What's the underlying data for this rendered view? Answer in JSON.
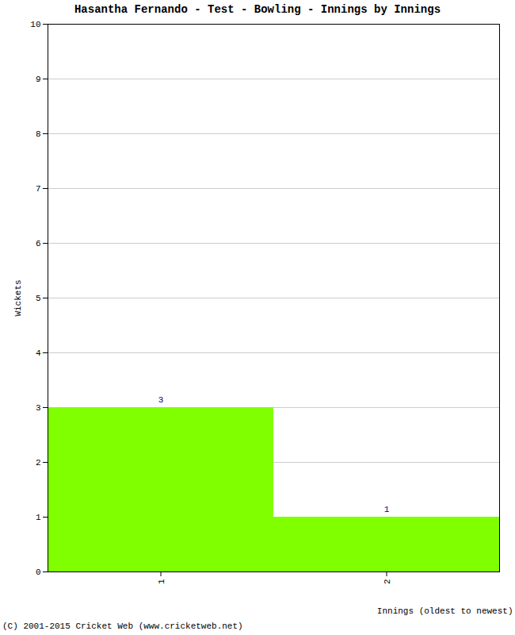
{
  "chart_data": {
    "type": "bar",
    "title": "Hasantha Fernando - Test - Bowling - Innings by Innings",
    "caption": "(C) 2001-2015 Cricket Web (www.cricketweb.net)",
    "x_label": "Innings (oldest to newest)",
    "y_label": "Wickets",
    "categories": [
      "1",
      "2"
    ],
    "values": [
      3,
      1
    ],
    "color": "#80ff00",
    "ylim": [
      0,
      10
    ],
    "yticks": [
      0,
      1,
      2,
      3,
      4,
      5,
      6,
      7,
      8,
      9,
      10
    ],
    "grid": true,
    "data_labels": true
  }
}
